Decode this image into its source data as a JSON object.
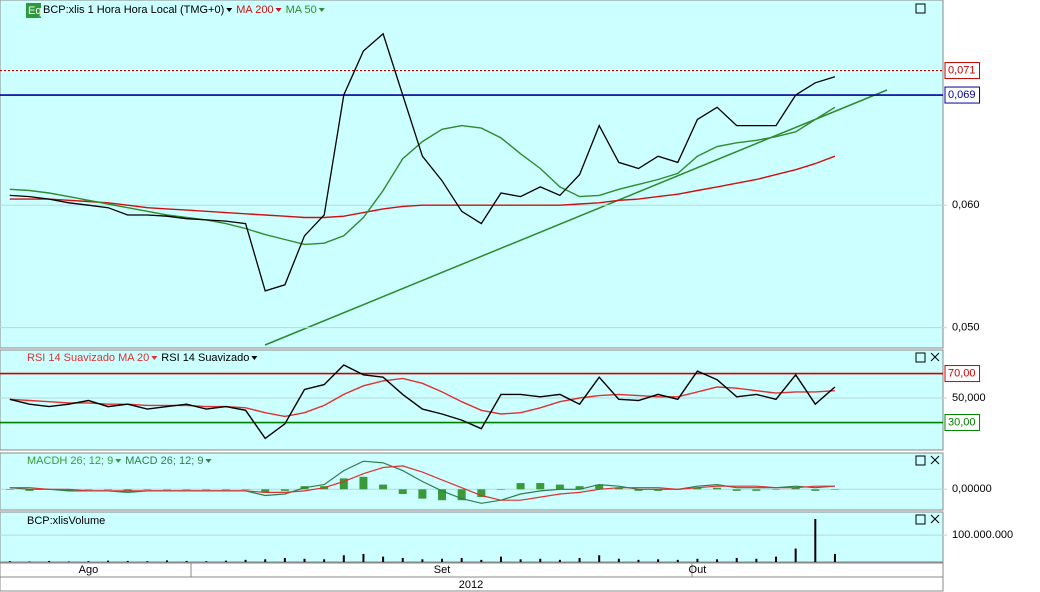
{
  "chart_data": [
    {
      "type": "line",
      "badge": "Eq",
      "title": "BCP:xlis 1 Hora Hora Local (TMG+0)",
      "color": "#000000",
      "values": [
        0.0608,
        0.0607,
        0.0605,
        0.0602,
        0.06,
        0.0598,
        0.0592,
        0.0592,
        0.0591,
        0.0589,
        0.0588,
        0.0587,
        0.0585,
        0.053,
        0.0535,
        0.0575,
        0.0592,
        0.069,
        0.0726,
        0.074,
        0.069,
        0.064,
        0.062,
        0.0595,
        0.0585,
        0.061,
        0.0607,
        0.0615,
        0.0608,
        0.0625,
        0.0665,
        0.0635,
        0.063,
        0.064,
        0.0635,
        0.067,
        0.068,
        0.0665,
        0.0665,
        0.0665,
        0.069,
        0.07,
        0.0705,
        null,
        null,
        null,
        null,
        null
      ],
      "series": [
        {
          "name": "MA 200",
          "color": "#d01010",
          "values": [
            0.0605,
            0.0605,
            0.0605,
            0.0604,
            0.0603,
            0.0602,
            0.06,
            0.0598,
            0.0597,
            0.0596,
            0.0595,
            0.0594,
            0.0593,
            0.0592,
            0.0591,
            0.059,
            0.059,
            0.0591,
            0.0594,
            0.0597,
            0.0599,
            0.06,
            0.06,
            0.06,
            0.06,
            0.06,
            0.06,
            0.06,
            0.06,
            0.0601,
            0.0602,
            0.0604,
            0.0605,
            0.0607,
            0.0609,
            0.0612,
            0.0615,
            0.0618,
            0.0621,
            0.0625,
            0.0629,
            0.0634,
            0.064,
            null,
            null,
            null,
            null,
            null
          ]
        },
        {
          "name": "MA 50",
          "color": "#2e8b2e",
          "values": [
            0.0613,
            0.0612,
            0.061,
            0.0607,
            0.0604,
            0.0601,
            0.0598,
            0.0595,
            0.0592,
            0.059,
            0.0588,
            0.0585,
            0.0581,
            0.0576,
            0.0572,
            0.0568,
            0.0569,
            0.0575,
            0.059,
            0.0612,
            0.0638,
            0.0652,
            0.0662,
            0.0665,
            0.0663,
            0.0655,
            0.0642,
            0.063,
            0.0615,
            0.0607,
            0.0608,
            0.0613,
            0.0617,
            0.0621,
            0.0626,
            0.064,
            0.0648,
            0.0651,
            0.0653,
            0.0656,
            0.066,
            0.067,
            0.068,
            null,
            null,
            null,
            null,
            null
          ]
        }
      ],
      "ylim": [
        0.0485,
        0.0766
      ],
      "yticks": [
        {
          "value": 0.06,
          "label": "0,060"
        },
        {
          "value": 0.05,
          "label": "0,050"
        }
      ],
      "levels": [
        {
          "value": 0.071,
          "label": "0,071",
          "color": "#c00000",
          "style": "dotted"
        },
        {
          "value": 0.069,
          "label": "0,069",
          "color": "#0000a0",
          "style": "solid"
        }
      ],
      "grid": true
    },
    {
      "type": "line",
      "series": [
        {
          "name": "RSI 14 Suavizado MA 20",
          "color": "#e03030",
          "values": [
            49,
            48,
            47,
            46,
            46,
            45,
            45,
            44,
            44,
            44,
            43,
            43,
            42,
            38,
            35,
            38,
            44,
            53,
            60,
            64,
            66,
            62,
            55,
            47,
            40,
            37,
            38,
            42,
            47,
            50,
            52,
            53,
            52,
            51,
            51,
            55,
            59,
            58,
            56,
            54,
            55,
            55,
            56,
            null,
            null,
            null,
            null,
            null
          ]
        },
        {
          "name": "RSI 14 Suavizado",
          "color": "#000000",
          "values": [
            49,
            45,
            43,
            45,
            48,
            43,
            45,
            41,
            43,
            45,
            41,
            43,
            40,
            17,
            29,
            57,
            61,
            77,
            69,
            67,
            53,
            41,
            37,
            32,
            25,
            53,
            53,
            51,
            53,
            45,
            67,
            49,
            48,
            53,
            49,
            72,
            65,
            51,
            53,
            49,
            69,
            45,
            59,
            null,
            null,
            null,
            null,
            null
          ]
        }
      ],
      "ylim": [
        9.2,
        87.6
      ],
      "yticks": [
        {
          "value": 50,
          "label": "50,000"
        }
      ],
      "levels": [
        {
          "value": 70,
          "label": "70,00",
          "color": "#d00000",
          "style": "solid"
        },
        {
          "value": 30,
          "label": "30,00",
          "color": "#008000",
          "style": "solid"
        }
      ]
    },
    {
      "type": "combo",
      "series": [
        {
          "name": "MACDH 26; 12; 9",
          "type": "bar",
          "color": "#3a9a3a",
          "values": [
            0,
            -0.0001,
            0,
            -0.0001,
            0,
            0,
            -0.0001,
            0,
            0,
            0,
            0,
            0,
            0,
            -0.0002,
            -0.0001,
            0.0002,
            0.0002,
            0.0007,
            0.0008,
            0.0003,
            -0.0003,
            -0.0006,
            -0.0007,
            -0.0007,
            -0.0005,
            0,
            0.0004,
            0.0004,
            0.0003,
            0.0002,
            0.0003,
            0.0001,
            -0.0001,
            -0.0001,
            0,
            0.0001,
            0.0001,
            -0.0001,
            -0.0001,
            0,
            0.0001,
            -0.0001,
            0,
            null,
            null,
            null,
            null,
            null
          ]
        },
        {
          "name": "MACD 26; 12; 9",
          "type": "line",
          "color": "#2e7d4e",
          "values": [
            0.0001,
            0,
            0,
            -0.0001,
            -0.0001,
            -0.0001,
            -0.0002,
            -0.0001,
            -0.0001,
            -0.0001,
            -0.0001,
            -0.0001,
            -0.0001,
            -0.0004,
            -0.0003,
            0.0001,
            0.0003,
            0.0012,
            0.0018,
            0.0017,
            0.0012,
            0.0005,
            -0.0001,
            -0.0006,
            -0.0009,
            -0.0007,
            -0.0003,
            -0.0001,
            0,
            0,
            0.0003,
            0.0002,
            0,
            0,
            0,
            0.0002,
            0.0003,
            0.0001,
            0.0001,
            0.0001,
            0.0002,
            0.0001,
            0.0002,
            null,
            null,
            null,
            null,
            null
          ]
        },
        {
          "type": "line",
          "color": "#e03030",
          "values": [
            0.0001,
            0.0001,
            0,
            0,
            -0.0001,
            -0.0001,
            -0.0001,
            -0.0001,
            -0.0001,
            -0.0001,
            -0.0001,
            -0.0001,
            -0.0001,
            -0.0002,
            -0.0002,
            -0.0001,
            0.0001,
            0.0005,
            0.001,
            0.0014,
            0.0015,
            0.0011,
            0.0006,
            0.0001,
            -0.0004,
            -0.0007,
            -0.0007,
            -0.0005,
            -0.0003,
            -0.0002,
            0,
            0.0001,
            0.0001,
            0.0001,
            0,
            0.0001,
            0.0002,
            0.0002,
            0.0002,
            0.0001,
            0.0001,
            0.0002,
            0.0002,
            null,
            null,
            null,
            null,
            null
          ]
        }
      ],
      "ylim": [
        -0.0012,
        0.0022
      ],
      "yticks": [
        {
          "value": 0,
          "label": "0,00000"
        }
      ]
    },
    {
      "type": "bar",
      "title": "BCP:xlisVolume",
      "color": "#000000",
      "categories": [
        null,
        null,
        null,
        null,
        "Ago",
        null,
        null,
        null,
        null,
        null,
        null,
        null,
        null,
        null,
        null,
        null,
        null,
        null,
        null,
        null,
        null,
        null,
        "Set",
        null,
        null,
        null,
        null,
        null,
        null,
        null,
        null,
        null,
        null,
        null,
        null,
        "Out",
        null,
        null,
        null,
        null,
        null,
        null,
        null,
        null,
        null,
        null,
        null,
        null
      ],
      "year": "2012",
      "values": [
        3000000,
        2000000,
        4000000,
        2000000,
        3000000,
        5000000,
        4000000,
        3000000,
        6000000,
        4000000,
        3000000,
        5000000,
        8000000,
        10000000,
        15000000,
        12000000,
        10000000,
        25000000,
        30000000,
        20000000,
        15000000,
        10000000,
        12000000,
        15000000,
        8000000,
        20000000,
        10000000,
        12000000,
        8000000,
        15000000,
        25000000,
        12000000,
        8000000,
        10000000,
        8000000,
        12000000,
        10000000,
        15000000,
        12000000,
        20000000,
        50000000,
        160000000,
        30000000,
        null,
        null,
        null,
        null,
        null
      ],
      "ylim": [
        0,
        178600000
      ],
      "yticks": [
        {
          "value": 100000000,
          "label": "100.000.000"
        }
      ]
    }
  ]
}
